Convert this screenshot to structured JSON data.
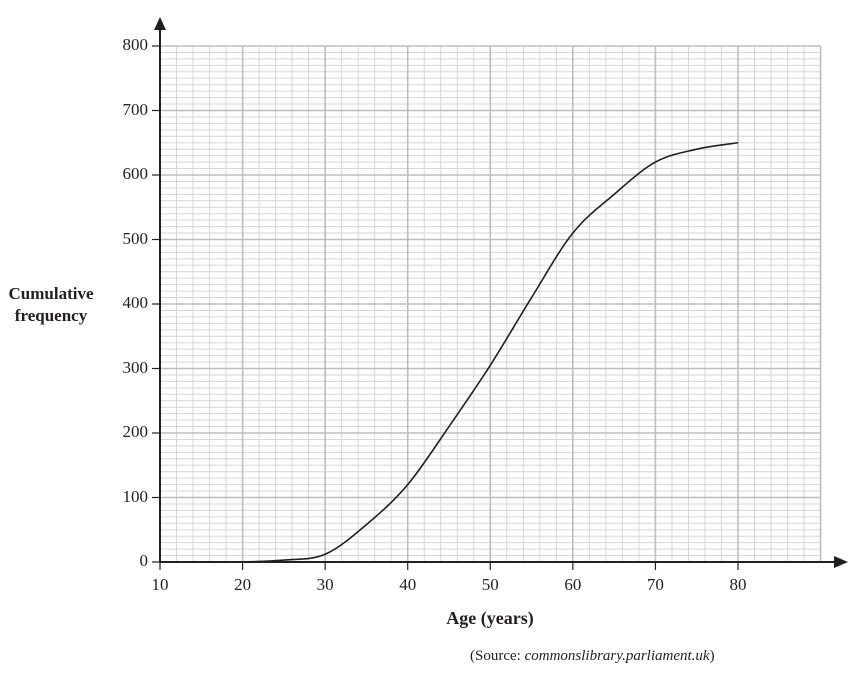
{
  "chart_data": {
    "type": "line",
    "title": "",
    "xlabel": "Age (years)",
    "ylabel": "Cumulative frequency",
    "xlim": [
      10,
      90
    ],
    "ylim": [
      0,
      800
    ],
    "x_ticks": [
      10,
      20,
      30,
      40,
      50,
      60,
      70,
      80
    ],
    "y_ticks": [
      0,
      100,
      200,
      300,
      400,
      500,
      600,
      700,
      800
    ],
    "grid": {
      "on": true,
      "minor_x_step": 2,
      "minor_y_step": 10,
      "major_x_step": 10,
      "major_y_step": 100
    },
    "legend": null,
    "series": [
      {
        "name": "cumulative frequency curve",
        "x": [
          20,
          25,
          30,
          35,
          40,
          45,
          50,
          55,
          60,
          65,
          70,
          75,
          80
        ],
        "values": [
          0,
          3,
          12,
          58,
          120,
          210,
          305,
          410,
          510,
          570,
          620,
          640,
          650
        ]
      }
    ],
    "annotations": []
  },
  "labels": {
    "ylabel_line1": "Cumulative",
    "ylabel_line2": "frequency",
    "xlabel": "Age (years)",
    "source_prefix": "(Source: ",
    "source_site": "commonslibrary.parliament.uk",
    "source_suffix": ")"
  }
}
